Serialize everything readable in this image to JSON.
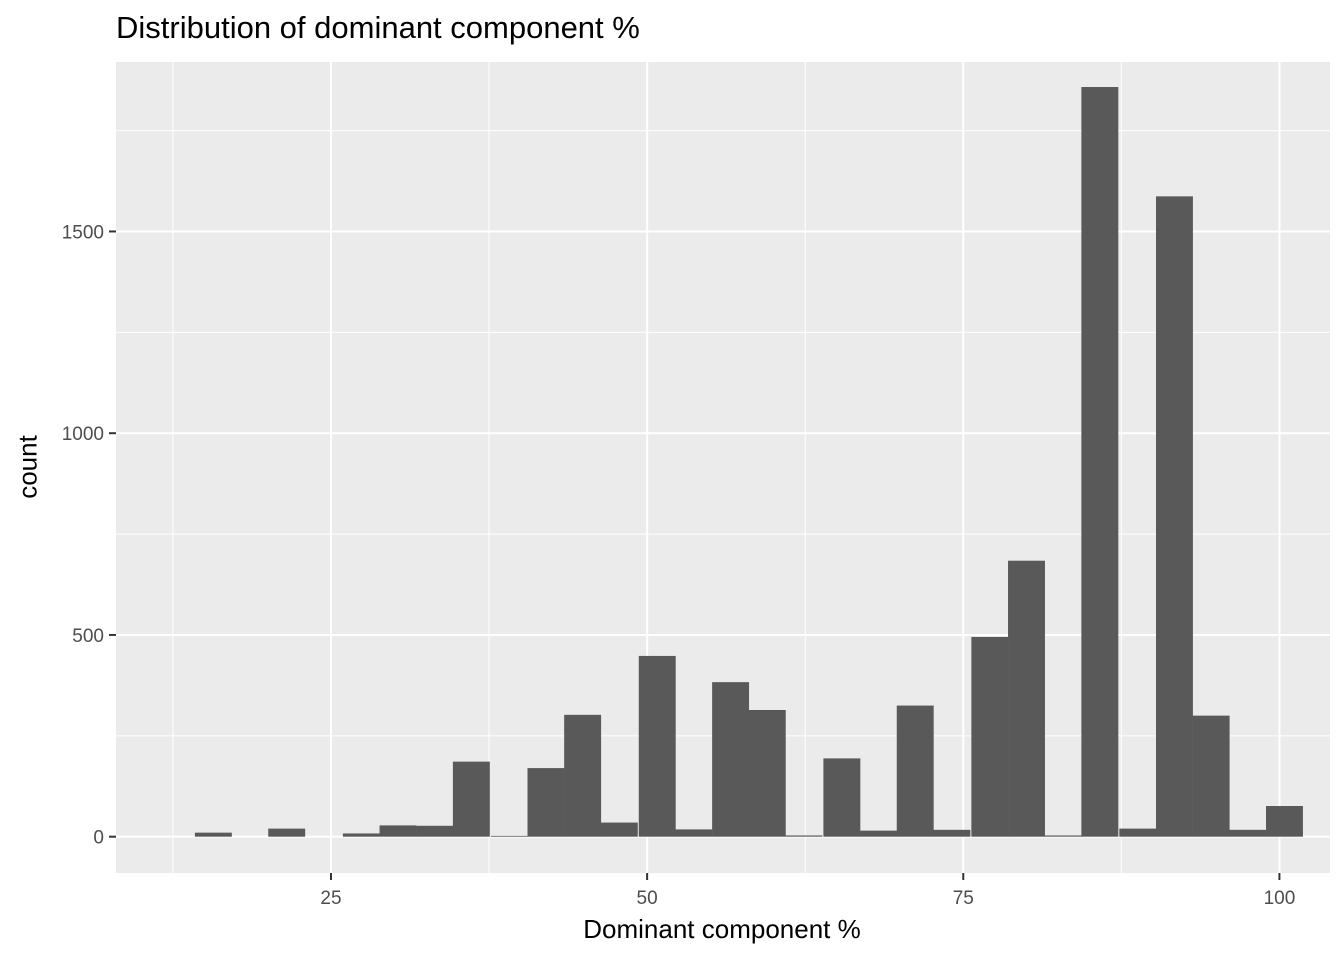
{
  "chart_data": {
    "type": "bar",
    "title": "Distribution of dominant component %",
    "xlabel": "Dominant component %",
    "ylabel": "count",
    "xlim": [
      8,
      104
    ],
    "ylim": [
      -90,
      1920
    ],
    "x_ticks": [
      25,
      50,
      75,
      100
    ],
    "x_tick_labels": [
      "25",
      "50",
      "75",
      "100"
    ],
    "x_minor_ticks": [
      12.5,
      37.5,
      62.5,
      87.5
    ],
    "y_ticks": [
      0,
      500,
      1000,
      1500
    ],
    "y_tick_labels": [
      "0",
      "500",
      "1000",
      "1500"
    ],
    "y_minor_ticks": [
      250,
      750,
      1250,
      1750
    ],
    "grid": true,
    "bin_width": 2.92,
    "bar_color": "#595959",
    "panel_color": "#ebebeb",
    "grid_color": "#ffffff",
    "bins": [
      {
        "x": 15.7,
        "count": 10
      },
      {
        "x": 21.5,
        "count": 20
      },
      {
        "x": 27.4,
        "count": 8
      },
      {
        "x": 30.3,
        "count": 28
      },
      {
        "x": 33.2,
        "count": 27
      },
      {
        "x": 36.1,
        "count": 186
      },
      {
        "x": 39.1,
        "count": 2
      },
      {
        "x": 42.0,
        "count": 170
      },
      {
        "x": 44.9,
        "count": 302
      },
      {
        "x": 47.8,
        "count": 35
      },
      {
        "x": 50.8,
        "count": 448
      },
      {
        "x": 53.7,
        "count": 18
      },
      {
        "x": 56.6,
        "count": 383
      },
      {
        "x": 59.5,
        "count": 314
      },
      {
        "x": 62.4,
        "count": 3
      },
      {
        "x": 65.4,
        "count": 194
      },
      {
        "x": 68.3,
        "count": 15
      },
      {
        "x": 71.2,
        "count": 325
      },
      {
        "x": 74.1,
        "count": 17
      },
      {
        "x": 77.1,
        "count": 495
      },
      {
        "x": 80.0,
        "count": 684
      },
      {
        "x": 82.9,
        "count": 3
      },
      {
        "x": 85.8,
        "count": 1858
      },
      {
        "x": 88.8,
        "count": 20
      },
      {
        "x": 91.7,
        "count": 1587
      },
      {
        "x": 94.6,
        "count": 300
      },
      {
        "x": 97.5,
        "count": 17
      },
      {
        "x": 100.4,
        "count": 76
      }
    ]
  }
}
